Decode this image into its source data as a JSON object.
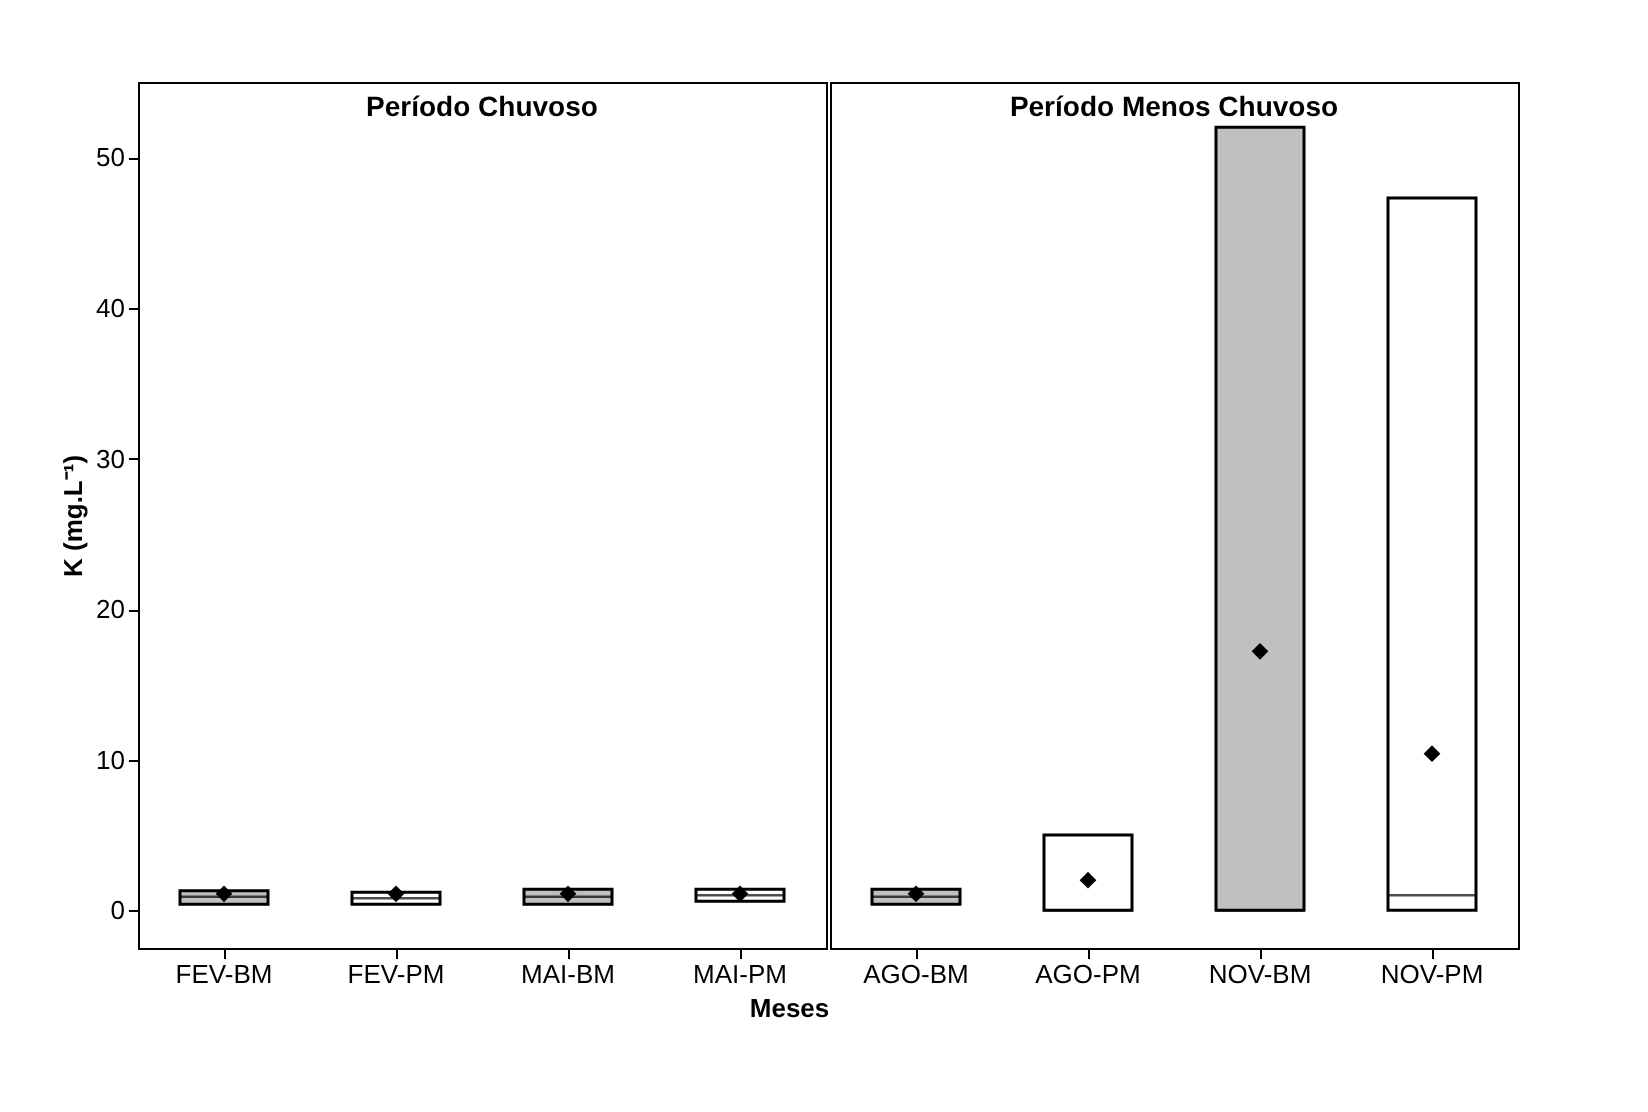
{
  "chart_data": [
    {
      "type": "box",
      "title": "Período Chuvoso",
      "xlabel": "Meses",
      "ylabel": "K (mg.L⁻¹)",
      "categories": [
        "FEV-BM",
        "FEV-PM",
        "MAI-BM",
        "MAI-PM"
      ],
      "boxes": [
        {
          "low": 0.4,
          "q1": 0.4,
          "median": 0.9,
          "q3": 1.3,
          "high": 1.3,
          "mean": 1.1
        },
        {
          "low": 0.4,
          "q1": 0.4,
          "median": 0.8,
          "q3": 1.2,
          "high": 1.2,
          "mean": 1.1
        },
        {
          "low": 0.4,
          "q1": 0.4,
          "median": 0.9,
          "q3": 1.4,
          "high": 1.4,
          "mean": 1.1
        },
        {
          "low": 0.6,
          "q1": 0.6,
          "median": 1.0,
          "q3": 1.4,
          "high": 1.4,
          "mean": 1.1
        }
      ],
      "colors": [
        "#c0c0c0",
        "#ffffff",
        "#c0c0c0",
        "#ffffff"
      ],
      "marker": "diamond",
      "ylim": [
        -2.5,
        55
      ],
      "yticks": [
        0,
        10,
        20,
        30,
        40,
        50
      ],
      "grid": false
    },
    {
      "type": "box",
      "title": "Período Menos Chuvoso",
      "categories": [
        "AGO-BM",
        "AGO-PM",
        "NOV-BM",
        "NOV-PM"
      ],
      "boxes": [
        {
          "low": 0.4,
          "q1": 0.4,
          "median": 0.9,
          "q3": 1.4,
          "high": 1.4,
          "mean": 1.1
        },
        {
          "low": 0,
          "q1": 0,
          "median": 0,
          "q3": 5,
          "high": 5,
          "mean": 2
        },
        {
          "low": 0,
          "q1": 0,
          "median": 0,
          "q3": 52,
          "high": 52,
          "mean": 17.2
        },
        {
          "low": 0,
          "q1": 0,
          "median": 1,
          "q3": 47.3,
          "high": 47.3,
          "mean": 10.4
        }
      ],
      "colors": [
        "#c0c0c0",
        "#ffffff",
        "#c0c0c0",
        "#ffffff"
      ],
      "marker": "diamond",
      "ylim": [
        -2.5,
        55
      ],
      "yticks": [
        0,
        10,
        20,
        30,
        40,
        50
      ],
      "grid": false,
      "tick_labels": "x"
    }
  ]
}
